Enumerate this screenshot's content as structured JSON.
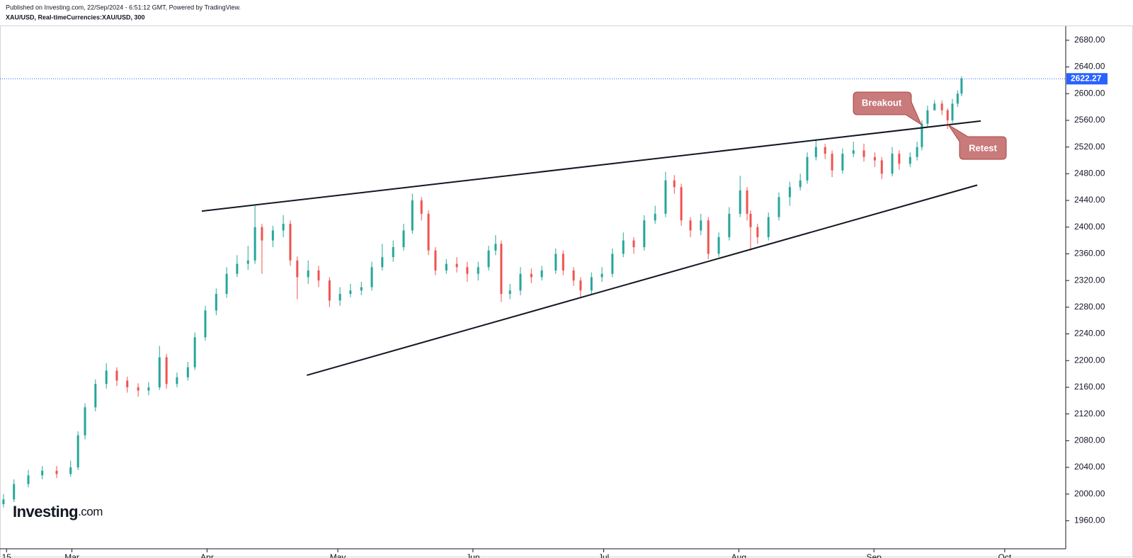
{
  "header": {
    "published": "Published on Investing.com, 22/Sep/2024 - 6:51:12 GMT, Powered by TradingView.",
    "symbol": "XAU/USD, Real-timeCurrencies:XAU/USD, 300"
  },
  "logo": [
    "Investing",
    ".com"
  ],
  "annotations": [
    "Breakout",
    "Retest"
  ],
  "chart_data": {
    "type": "candlestick",
    "up_color": "#26a69a",
    "down_color": "#ef5350",
    "last_price_color": "#2962ff",
    "xlim": [
      44.5,
      289
    ],
    "xticks": [
      {
        "value": 46,
        "label": "15"
      },
      {
        "value": 61,
        "label": "Mar"
      },
      {
        "value": 92,
        "label": "Apr"
      },
      {
        "value": 122,
        "label": "May"
      },
      {
        "value": 153,
        "label": "Jun"
      },
      {
        "value": 183,
        "label": "Jul"
      },
      {
        "value": 214,
        "label": "Aug"
      },
      {
        "value": 245,
        "label": "Sep"
      },
      {
        "value": 275,
        "label": "Oct"
      }
    ],
    "ylim": [
      1918,
      2700
    ],
    "yticks": [
      {
        "value": 1960,
        "label": "1960.00"
      },
      {
        "value": 2000,
        "label": "2000.00"
      },
      {
        "value": 2040,
        "label": "2040.00"
      },
      {
        "value": 2080,
        "label": "2080.00"
      },
      {
        "value": 2120,
        "label": "2120.00"
      },
      {
        "value": 2160,
        "label": "2160.00"
      },
      {
        "value": 2200,
        "label": "2200.00"
      },
      {
        "value": 2240,
        "label": "2240.00"
      },
      {
        "value": 2280,
        "label": "2280.00"
      },
      {
        "value": 2320,
        "label": "2320.00"
      },
      {
        "value": 2360,
        "label": "2360.00"
      },
      {
        "value": 2400,
        "label": "2400.00"
      },
      {
        "value": 2440,
        "label": "2440.00"
      },
      {
        "value": 2480,
        "label": "2480.00"
      },
      {
        "value": 2520,
        "label": "2520.00"
      },
      {
        "value": 2560,
        "label": "2560.00"
      },
      {
        "value": 2600,
        "label": "2600.00"
      },
      {
        "value": 2640,
        "label": "2640.00"
      },
      {
        "value": 2680,
        "label": "2680.00"
      }
    ],
    "x": [
      45.3,
      47.7,
      51,
      54.2,
      57.5,
      60.7,
      62.4,
      64,
      66.4,
      68.9,
      71.3,
      73.7,
      76.2,
      78.6,
      81.1,
      82.7,
      85.1,
      87.6,
      89.2,
      91.6,
      94.1,
      96.5,
      98.9,
      101.4,
      103,
      104.6,
      107.1,
      109.5,
      111.1,
      112.7,
      115.2,
      117.6,
      120.1,
      122.5,
      124.9,
      127.4,
      129.8,
      132.2,
      134.7,
      137.1,
      139.1,
      141.2,
      142.8,
      144.4,
      146.9,
      149.3,
      151.7,
      154.2,
      156.6,
      158.2,
      159.5,
      161.5,
      163.9,
      166.4,
      168.8,
      172,
      173.7,
      176.1,
      177.7,
      180.2,
      182.6,
      185,
      187.5,
      189.9,
      192.3,
      194.8,
      197.2,
      199.2,
      200.8,
      202.9,
      205.3,
      207,
      209.4,
      211.8,
      214.3,
      215.9,
      216.7,
      218.3,
      220.8,
      223.2,
      225.7,
      228.1,
      229.7,
      231.7,
      233.8,
      235.4,
      237.8,
      240.3,
      242.7,
      245.2,
      246.8,
      249.2,
      250.8,
      253.3,
      254.9,
      256,
      257.3,
      258.9,
      260.6,
      261.9,
      263,
      264.2,
      265.1
    ],
    "open": [
      1985,
      1992,
      2015,
      2028,
      2035,
      2030,
      2040,
      2088,
      2130,
      2165,
      2185,
      2170,
      2160,
      2155,
      2160,
      2205,
      2165,
      2175,
      2190,
      2235,
      2275,
      2300,
      2330,
      2345,
      2350,
      2400,
      2380,
      2395,
      2405,
      2350,
      2325,
      2335,
      2320,
      2290,
      2300,
      2305,
      2310,
      2340,
      2355,
      2370,
      2395,
      2440,
      2420,
      2365,
      2335,
      2345,
      2340,
      2330,
      2340,
      2365,
      2375,
      2300,
      2305,
      2330,
      2325,
      2335,
      2360,
      2335,
      2320,
      2305,
      2325,
      2330,
      2360,
      2380,
      2370,
      2410,
      2420,
      2470,
      2460,
      2410,
      2395,
      2410,
      2360,
      2385,
      2420,
      2455,
      2420,
      2400,
      2385,
      2415,
      2445,
      2460,
      2470,
      2505,
      2520,
      2510,
      2485,
      2510,
      2515,
      2505,
      2500,
      2480,
      2510,
      2495,
      2505,
      2520,
      2555,
      2575,
      2585,
      2575,
      2560,
      2585,
      2600
    ],
    "high": [
      2000,
      2022,
      2036,
      2042,
      2042,
      2050,
      2094,
      2136,
      2172,
      2196,
      2190,
      2176,
      2166,
      2168,
      2222,
      2210,
      2182,
      2198,
      2242,
      2282,
      2308,
      2340,
      2358,
      2372,
      2432,
      2405,
      2402,
      2418,
      2410,
      2356,
      2350,
      2342,
      2325,
      2310,
      2315,
      2318,
      2348,
      2375,
      2380,
      2405,
      2450,
      2445,
      2425,
      2370,
      2352,
      2355,
      2348,
      2348,
      2372,
      2388,
      2380,
      2315,
      2340,
      2338,
      2342,
      2368,
      2365,
      2340,
      2325,
      2332,
      2340,
      2368,
      2392,
      2385,
      2418,
      2432,
      2483,
      2478,
      2465,
      2415,
      2420,
      2415,
      2392,
      2430,
      2477,
      2460,
      2425,
      2405,
      2422,
      2452,
      2468,
      2480,
      2512,
      2532,
      2525,
      2515,
      2518,
      2528,
      2525,
      2512,
      2505,
      2520,
      2515,
      2512,
      2528,
      2560,
      2582,
      2590,
      2590,
      2578,
      2592,
      2605,
      2626
    ],
    "low": [
      1980,
      1988,
      2010,
      2022,
      2024,
      2026,
      2036,
      2082,
      2124,
      2158,
      2162,
      2152,
      2146,
      2148,
      2156,
      2158,
      2160,
      2170,
      2186,
      2230,
      2268,
      2294,
      2325,
      2336,
      2345,
      2330,
      2370,
      2385,
      2342,
      2292,
      2315,
      2310,
      2280,
      2282,
      2295,
      2298,
      2305,
      2335,
      2348,
      2365,
      2390,
      2410,
      2358,
      2328,
      2330,
      2332,
      2318,
      2320,
      2335,
      2358,
      2288,
      2292,
      2298,
      2316,
      2320,
      2330,
      2328,
      2312,
      2295,
      2300,
      2318,
      2325,
      2355,
      2360,
      2365,
      2405,
      2415,
      2450,
      2402,
      2385,
      2388,
      2352,
      2355,
      2380,
      2415,
      2410,
      2365,
      2375,
      2380,
      2410,
      2432,
      2455,
      2465,
      2500,
      2502,
      2475,
      2480,
      2505,
      2498,
      2490,
      2472,
      2476,
      2486,
      2490,
      2500,
      2515,
      2550,
      2575,
      2568,
      2547,
      2556,
      2580,
      2596
    ],
    "close": [
      1992,
      2015,
      2028,
      2035,
      2030,
      2040,
      2088,
      2130,
      2165,
      2185,
      2170,
      2160,
      2155,
      2160,
      2205,
      2165,
      2175,
      2190,
      2235,
      2275,
      2300,
      2330,
      2345,
      2350,
      2400,
      2380,
      2395,
      2405,
      2350,
      2325,
      2335,
      2320,
      2290,
      2300,
      2305,
      2310,
      2340,
      2355,
      2370,
      2395,
      2440,
      2420,
      2365,
      2335,
      2345,
      2340,
      2330,
      2340,
      2365,
      2375,
      2300,
      2305,
      2330,
      2325,
      2335,
      2360,
      2335,
      2320,
      2305,
      2325,
      2330,
      2360,
      2380,
      2370,
      2410,
      2420,
      2470,
      2460,
      2410,
      2395,
      2410,
      2360,
      2385,
      2420,
      2455,
      2420,
      2400,
      2385,
      2415,
      2445,
      2460,
      2470,
      2505,
      2520,
      2510,
      2485,
      2510,
      2515,
      2505,
      2500,
      2480,
      2510,
      2495,
      2505,
      2520,
      2555,
      2575,
      2585,
      2575,
      2560,
      2585,
      2600,
      2622.27
    ],
    "trendlines": [
      {
        "x": [
          90.8,
          269.5
        ],
        "y": [
          2424,
          2559
        ]
      },
      {
        "x": [
          114.9,
          268.7
        ],
        "y": [
          2178,
          2463
        ]
      }
    ]
  }
}
